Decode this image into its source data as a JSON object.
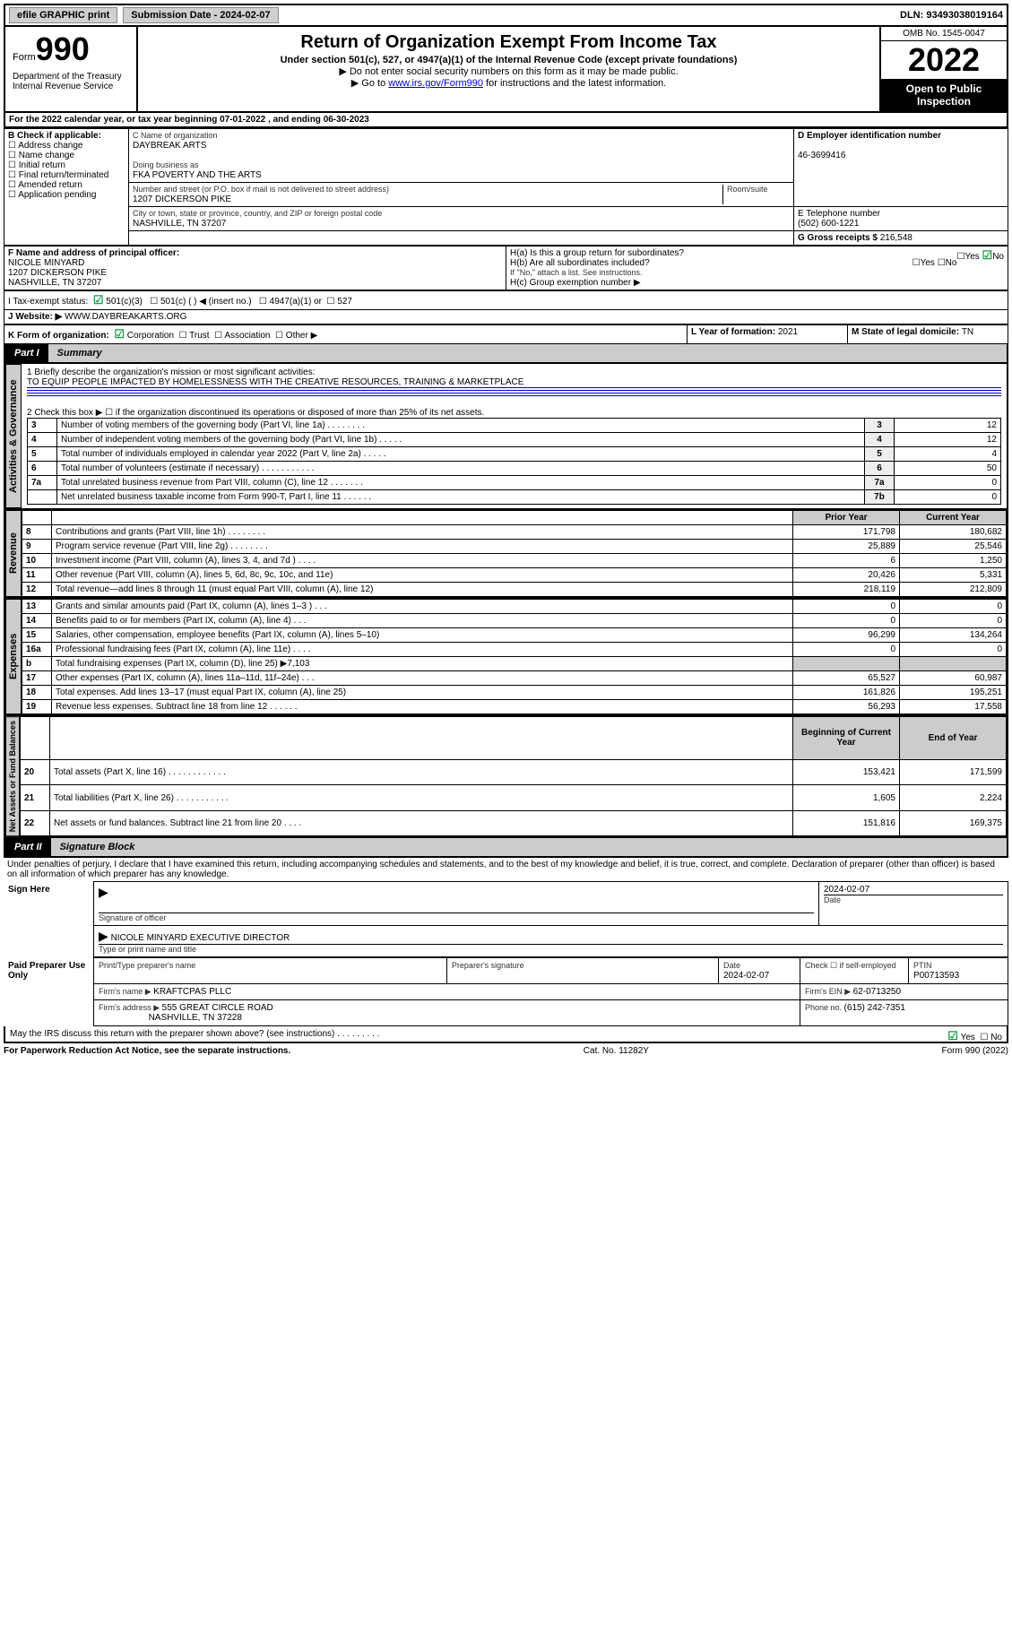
{
  "topbar": {
    "efile": "efile GRAPHIC print",
    "submission_label": "Submission Date - ",
    "submission_date": "2024-02-07",
    "dln_label": "DLN: ",
    "dln": "93493038019164"
  },
  "header": {
    "form_word": "Form",
    "form_num": "990",
    "dept": "Department of the Treasury Internal Revenue Service",
    "title": "Return of Organization Exempt From Income Tax",
    "sub": "Under section 501(c), 527, or 4947(a)(1) of the Internal Revenue Code (except private foundations)",
    "sub2a": "▶ Do not enter social security numbers on this form as it may be made public.",
    "sub2b_pre": "▶ Go to ",
    "sub2b_link": "www.irs.gov/Form990",
    "sub2b_post": " for instructions and the latest information.",
    "omb": "OMB No. 1545-0047",
    "year": "2022",
    "open": "Open to Public Inspection"
  },
  "line_a": "For the 2022 calendar year, or tax year beginning 07-01-2022   , and ending 06-30-2023",
  "box_b": {
    "label": "B Check if applicable:",
    "items": [
      "Address change",
      "Name change",
      "Initial return",
      "Final return/terminated",
      "Amended return",
      "Application pending"
    ]
  },
  "box_c": {
    "name_lbl": "C Name of organization",
    "name": "DAYBREAK ARTS",
    "dba_lbl": "Doing business as",
    "dba": "FKA POVERTY AND THE ARTS",
    "street_lbl": "Number and street (or P.O. box if mail is not delivered to street address)",
    "room_lbl": "Room/suite",
    "street": "1207 DICKERSON PIKE",
    "city_lbl": "City or town, state or province, country, and ZIP or foreign postal code",
    "city": "NASHVILLE, TN  37207"
  },
  "box_d": {
    "label": "D Employer identification number",
    "value": "46-3699416"
  },
  "box_e": {
    "label": "E Telephone number",
    "value": "(502) 600-1221"
  },
  "box_g": {
    "label": "G Gross receipts $ ",
    "value": "216,548"
  },
  "box_f": {
    "label": "F Name and address of principal officer:",
    "name": "NICOLE MINYARD",
    "addr1": "1207 DICKERSON PIKE",
    "addr2": "NASHVILLE, TN  37207"
  },
  "box_h": {
    "a": "H(a)  Is this a group return for subordinates?",
    "b": "H(b)  Are all subordinates included?",
    "b_note": "If \"No,\" attach a list. See instructions.",
    "c": "H(c)  Group exemption number ▶",
    "yes": "Yes",
    "no": "No"
  },
  "row_i": {
    "label": "I   Tax-exempt status:",
    "c3": "501(c)(3)",
    "c_": "501(c) (  ) ◀ (insert no.)",
    "a1": "4947(a)(1) or",
    "527": "527"
  },
  "row_j": {
    "label": "J   Website: ▶",
    "value": "WWW.DAYBREAKARTS.ORG"
  },
  "row_k": {
    "label": "K Form of organization:",
    "opts": [
      "Corporation",
      "Trust",
      "Association",
      "Other ▶"
    ]
  },
  "row_l": {
    "label": "L Year of formation: ",
    "value": "2021"
  },
  "row_m": {
    "label": "M State of legal domicile: ",
    "value": "TN"
  },
  "part1": {
    "tag": "Part I",
    "title": "Summary"
  },
  "summary": {
    "line1_lbl": "1   Briefly describe the organization's mission or most significant activities:",
    "line1_val": "TO EQUIP PEOPLE IMPACTED BY HOMELESSNESS WITH THE CREATIVE RESOURCES, TRAINING & MARKETPLACE",
    "line2": "2   Check this box ▶ ☐  if the organization discontinued its operations or disposed of more than 25% of its net assets.",
    "rows_gov": [
      {
        "n": "3",
        "lbl": "Number of voting members of the governing body (Part VI, line 1a)  .   .   .   .   .   .   .   .",
        "box": "3",
        "v": "12"
      },
      {
        "n": "4",
        "lbl": "Number of independent voting members of the governing body (Part VI, line 1b)   .   .   .   .   .",
        "box": "4",
        "v": "12"
      },
      {
        "n": "5",
        "lbl": "Total number of individuals employed in calendar year 2022 (Part V, line 2a)   .   .   .   .   .",
        "box": "5",
        "v": "4"
      },
      {
        "n": "6",
        "lbl": "Total number of volunteers (estimate if necessary)   .   .   .   .   .   .   .   .   .   .   .",
        "box": "6",
        "v": "50"
      },
      {
        "n": "7a",
        "lbl": "Total unrelated business revenue from Part VIII, column (C), line 12   .   .   .   .   .   .   .",
        "box": "7a",
        "v": "0"
      },
      {
        "n": "",
        "lbl": "Net unrelated business taxable income from Form 990-T, Part I, line 11   .   .   .   .   .   .",
        "box": "7b",
        "v": "0"
      }
    ],
    "col_prior": "Prior Year",
    "col_current": "Current Year",
    "rows_rev": [
      {
        "n": "8",
        "lbl": "Contributions and grants (Part VIII, line 1h)   .   .   .   .   .   .   .   .",
        "p": "171,798",
        "c": "180,682"
      },
      {
        "n": "9",
        "lbl": "Program service revenue (Part VIII, line 2g)   .   .   .   .   .   .   .   .",
        "p": "25,889",
        "c": "25,546"
      },
      {
        "n": "10",
        "lbl": "Investment income (Part VIII, column (A), lines 3, 4, and 7d )   .   .   .   .",
        "p": "6",
        "c": "1,250"
      },
      {
        "n": "11",
        "lbl": "Other revenue (Part VIII, column (A), lines 5, 6d, 8c, 9c, 10c, and 11e)",
        "p": "20,426",
        "c": "5,331"
      },
      {
        "n": "12",
        "lbl": "Total revenue—add lines 8 through 11 (must equal Part VIII, column (A), line 12)",
        "p": "218,119",
        "c": "212,809"
      }
    ],
    "rows_exp": [
      {
        "n": "13",
        "lbl": "Grants and similar amounts paid (Part IX, column (A), lines 1–3 )   .   .   .",
        "p": "0",
        "c": "0"
      },
      {
        "n": "14",
        "lbl": "Benefits paid to or for members (Part IX, column (A), line 4)   .   .   .",
        "p": "0",
        "c": "0"
      },
      {
        "n": "15",
        "lbl": "Salaries, other compensation, employee benefits (Part IX, column (A), lines 5–10)",
        "p": "96,299",
        "c": "134,264"
      },
      {
        "n": "16a",
        "lbl": "Professional fundraising fees (Part IX, column (A), line 11e)   .   .   .   .",
        "p": "0",
        "c": "0"
      },
      {
        "n": "b",
        "lbl": "Total fundraising expenses (Part IX, column (D), line 25) ▶7,103",
        "p": "",
        "c": "",
        "grey": true
      },
      {
        "n": "17",
        "lbl": "Other expenses (Part IX, column (A), lines 11a–11d, 11f–24e)   .   .   .",
        "p": "65,527",
        "c": "60,987"
      },
      {
        "n": "18",
        "lbl": "Total expenses. Add lines 13–17 (must equal Part IX, column (A), line 25)",
        "p": "161,826",
        "c": "195,251"
      },
      {
        "n": "19",
        "lbl": "Revenue less expenses. Subtract line 18 from line 12   .   .   .   .   .   .",
        "p": "56,293",
        "c": "17,558"
      }
    ],
    "col_begin": "Beginning of Current Year",
    "col_end": "End of Year",
    "rows_net": [
      {
        "n": "20",
        "lbl": "Total assets (Part X, line 16)   .   .   .   .   .   .   .   .   .   .   .   .",
        "p": "153,421",
        "c": "171,599"
      },
      {
        "n": "21",
        "lbl": "Total liabilities (Part X, line 26)   .   .   .   .   .   .   .   .   .   .   .",
        "p": "1,605",
        "c": "2,224"
      },
      {
        "n": "22",
        "lbl": "Net assets or fund balances. Subtract line 21 from line 20   .   .   .   .",
        "p": "151,816",
        "c": "169,375"
      }
    ],
    "side_labels": {
      "gov": "Activities & Governance",
      "rev": "Revenue",
      "exp": "Expenses",
      "net": "Net Assets or Fund Balances"
    }
  },
  "part2": {
    "tag": "Part II",
    "title": "Signature Block"
  },
  "penalties": "Under penalties of perjury, I declare that I have examined this return, including accompanying schedules and statements, and to the best of my knowledge and belief, it is true, correct, and complete. Declaration of preparer (other than officer) is based on all information of which preparer has any knowledge.",
  "sign": {
    "here": "Sign Here",
    "sig_officer": "Signature of officer",
    "date": "Date",
    "date_val": "2024-02-07",
    "name_title": "NICOLE MINYARD  EXECUTIVE DIRECTOR",
    "type_lbl": "Type or print name and title"
  },
  "paid": {
    "title": "Paid Preparer Use Only",
    "pname_lbl": "Print/Type preparer's name",
    "psig_lbl": "Preparer's signature",
    "pdate_lbl": "Date",
    "pdate": "2024-02-07",
    "check_lbl": "Check ☐ if self-employed",
    "ptin_lbl": "PTIN",
    "ptin": "P00713593",
    "firm_name_lbl": "Firm's name    ▶ ",
    "firm_name": "KRAFTCPAS PLLC",
    "firm_ein_lbl": "Firm's EIN ▶ ",
    "firm_ein": "62-0713250",
    "firm_addr_lbl": "Firm's address ▶ ",
    "firm_addr1": "555 GREAT CIRCLE ROAD",
    "firm_addr2": "NASHVILLE, TN  37228",
    "phone_lbl": "Phone no. ",
    "phone": "(615) 242-7351"
  },
  "discuss": {
    "q": "May the IRS discuss this return with the preparer shown above? (see instructions)   .   .   .   .   .   .   .   .   .",
    "yes": "Yes",
    "no": "No"
  },
  "footer": {
    "left": "For Paperwork Reduction Act Notice, see the separate instructions.",
    "mid": "Cat. No. 11282Y",
    "right": "Form 990 (2022)"
  }
}
